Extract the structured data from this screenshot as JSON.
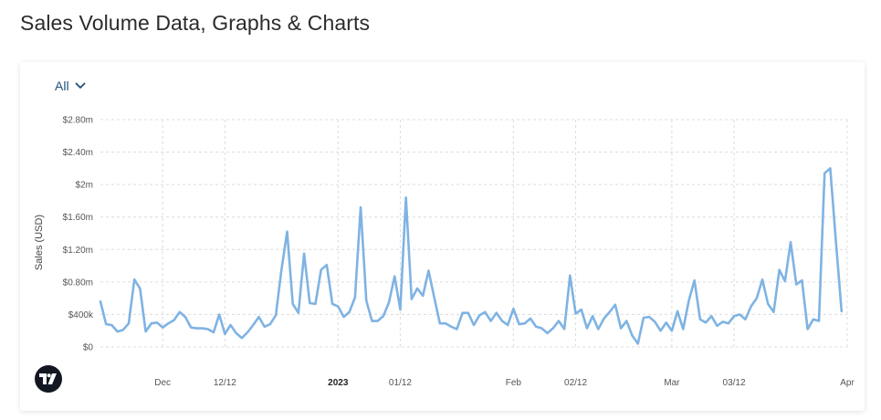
{
  "page": {
    "title": "Sales Volume Data, Graphs & Charts"
  },
  "filter": {
    "selected": "All"
  },
  "chart_data": {
    "type": "line",
    "title": "",
    "ylabel": "Sales (USD)",
    "xlabel": "",
    "ylim": [
      0,
      2800000
    ],
    "y_ticks": [
      {
        "value": 0,
        "label": "$0"
      },
      {
        "value": 400000,
        "label": "$400k"
      },
      {
        "value": 800000,
        "label": "$0.80m"
      },
      {
        "value": 1200000,
        "label": "$1.20m"
      },
      {
        "value": 1600000,
        "label": "$1.60m"
      },
      {
        "value": 2000000,
        "label": "$2m"
      },
      {
        "value": 2400000,
        "label": "$2.40m"
      },
      {
        "value": 2800000,
        "label": "$2.80m"
      }
    ],
    "x_start": "2022-11-20",
    "x_end": "2023-04-01",
    "x_ticks": [
      {
        "date": "2022-12-01",
        "label": "Dec",
        "bold": false
      },
      {
        "date": "2022-12-12",
        "label": "12/12",
        "bold": false
      },
      {
        "date": "2023-01-01",
        "label": "2023",
        "bold": true
      },
      {
        "date": "2023-01-12",
        "label": "01/12",
        "bold": false
      },
      {
        "date": "2023-02-01",
        "label": "Feb",
        "bold": false
      },
      {
        "date": "2023-02-12",
        "label": "02/12",
        "bold": false
      },
      {
        "date": "2023-03-01",
        "label": "Mar",
        "bold": false
      },
      {
        "date": "2023-03-12",
        "label": "03/12",
        "bold": false
      },
      {
        "date": "2023-04-01",
        "label": "Apr",
        "bold": false
      }
    ],
    "grid": true,
    "line_color": "#7fb3e3",
    "series": [
      {
        "name": "",
        "points": [
          [
            "2022-11-20",
            560000
          ],
          [
            "2022-11-21",
            280000
          ],
          [
            "2022-11-22",
            270000
          ],
          [
            "2022-11-23",
            190000
          ],
          [
            "2022-11-24",
            210000
          ],
          [
            "2022-11-25",
            290000
          ],
          [
            "2022-11-26",
            830000
          ],
          [
            "2022-11-27",
            720000
          ],
          [
            "2022-11-28",
            190000
          ],
          [
            "2022-11-29",
            290000
          ],
          [
            "2022-11-30",
            300000
          ],
          [
            "2022-12-01",
            240000
          ],
          [
            "2022-12-02",
            290000
          ],
          [
            "2022-12-03",
            330000
          ],
          [
            "2022-12-04",
            430000
          ],
          [
            "2022-12-05",
            370000
          ],
          [
            "2022-12-06",
            240000
          ],
          [
            "2022-12-07",
            230000
          ],
          [
            "2022-12-08",
            230000
          ],
          [
            "2022-12-09",
            220000
          ],
          [
            "2022-12-10",
            180000
          ],
          [
            "2022-12-11",
            400000
          ],
          [
            "2022-12-12",
            160000
          ],
          [
            "2022-12-13",
            270000
          ],
          [
            "2022-12-14",
            170000
          ],
          [
            "2022-12-15",
            110000
          ],
          [
            "2022-12-16",
            180000
          ],
          [
            "2022-12-17",
            270000
          ],
          [
            "2022-12-18",
            370000
          ],
          [
            "2022-12-19",
            250000
          ],
          [
            "2022-12-20",
            280000
          ],
          [
            "2022-12-21",
            390000
          ],
          [
            "2022-12-22",
            950000
          ],
          [
            "2022-12-23",
            1420000
          ],
          [
            "2022-12-24",
            530000
          ],
          [
            "2022-12-25",
            420000
          ],
          [
            "2022-12-26",
            1150000
          ],
          [
            "2022-12-27",
            540000
          ],
          [
            "2022-12-28",
            530000
          ],
          [
            "2022-12-29",
            950000
          ],
          [
            "2022-12-30",
            1010000
          ],
          [
            "2022-12-31",
            530000
          ],
          [
            "2023-01-01",
            500000
          ],
          [
            "2023-01-02",
            370000
          ],
          [
            "2023-01-03",
            430000
          ],
          [
            "2023-01-04",
            610000
          ],
          [
            "2023-01-05",
            1720000
          ],
          [
            "2023-01-06",
            570000
          ],
          [
            "2023-01-07",
            320000
          ],
          [
            "2023-01-08",
            320000
          ],
          [
            "2023-01-09",
            380000
          ],
          [
            "2023-01-10",
            550000
          ],
          [
            "2023-01-11",
            870000
          ],
          [
            "2023-01-12",
            460000
          ],
          [
            "2023-01-13",
            1840000
          ],
          [
            "2023-01-14",
            590000
          ],
          [
            "2023-01-15",
            720000
          ],
          [
            "2023-01-16",
            630000
          ],
          [
            "2023-01-17",
            940000
          ],
          [
            "2023-01-18",
            610000
          ],
          [
            "2023-01-19",
            290000
          ],
          [
            "2023-01-20",
            290000
          ],
          [
            "2023-01-21",
            250000
          ],
          [
            "2023-01-22",
            220000
          ],
          [
            "2023-01-23",
            420000
          ],
          [
            "2023-01-24",
            420000
          ],
          [
            "2023-01-25",
            270000
          ],
          [
            "2023-01-26",
            390000
          ],
          [
            "2023-01-27",
            430000
          ],
          [
            "2023-01-28",
            320000
          ],
          [
            "2023-01-29",
            420000
          ],
          [
            "2023-01-30",
            320000
          ],
          [
            "2023-01-31",
            270000
          ],
          [
            "2023-02-01",
            470000
          ],
          [
            "2023-02-02",
            280000
          ],
          [
            "2023-02-03",
            290000
          ],
          [
            "2023-02-04",
            350000
          ],
          [
            "2023-02-05",
            250000
          ],
          [
            "2023-02-06",
            230000
          ],
          [
            "2023-02-07",
            170000
          ],
          [
            "2023-02-08",
            230000
          ],
          [
            "2023-02-09",
            320000
          ],
          [
            "2023-02-10",
            220000
          ],
          [
            "2023-02-11",
            880000
          ],
          [
            "2023-02-12",
            410000
          ],
          [
            "2023-02-13",
            460000
          ],
          [
            "2023-02-14",
            230000
          ],
          [
            "2023-02-15",
            380000
          ],
          [
            "2023-02-16",
            220000
          ],
          [
            "2023-02-17",
            350000
          ],
          [
            "2023-02-18",
            430000
          ],
          [
            "2023-02-19",
            520000
          ],
          [
            "2023-02-20",
            230000
          ],
          [
            "2023-02-21",
            320000
          ],
          [
            "2023-02-22",
            140000
          ],
          [
            "2023-02-23",
            40000
          ],
          [
            "2023-02-24",
            360000
          ],
          [
            "2023-02-25",
            370000
          ],
          [
            "2023-02-26",
            310000
          ],
          [
            "2023-02-27",
            200000
          ],
          [
            "2023-02-28",
            300000
          ],
          [
            "2023-03-01",
            200000
          ],
          [
            "2023-03-02",
            440000
          ],
          [
            "2023-03-03",
            220000
          ],
          [
            "2023-03-04",
            570000
          ],
          [
            "2023-03-05",
            820000
          ],
          [
            "2023-03-06",
            340000
          ],
          [
            "2023-03-07",
            300000
          ],
          [
            "2023-03-08",
            380000
          ],
          [
            "2023-03-09",
            260000
          ],
          [
            "2023-03-10",
            310000
          ],
          [
            "2023-03-11",
            290000
          ],
          [
            "2023-03-12",
            380000
          ],
          [
            "2023-03-13",
            400000
          ],
          [
            "2023-03-14",
            340000
          ],
          [
            "2023-03-15",
            500000
          ],
          [
            "2023-03-16",
            600000
          ],
          [
            "2023-03-17",
            830000
          ],
          [
            "2023-03-18",
            530000
          ],
          [
            "2023-03-19",
            430000
          ],
          [
            "2023-03-20",
            950000
          ],
          [
            "2023-03-21",
            810000
          ],
          [
            "2023-03-22",
            1290000
          ],
          [
            "2023-03-23",
            770000
          ],
          [
            "2023-03-24",
            820000
          ],
          [
            "2023-03-25",
            220000
          ],
          [
            "2023-03-26",
            340000
          ],
          [
            "2023-03-27",
            320000
          ],
          [
            "2023-03-28",
            2140000
          ],
          [
            "2023-03-29",
            2200000
          ],
          [
            "2023-03-30",
            1300000
          ],
          [
            "2023-03-31",
            440000
          ]
        ]
      }
    ]
  }
}
